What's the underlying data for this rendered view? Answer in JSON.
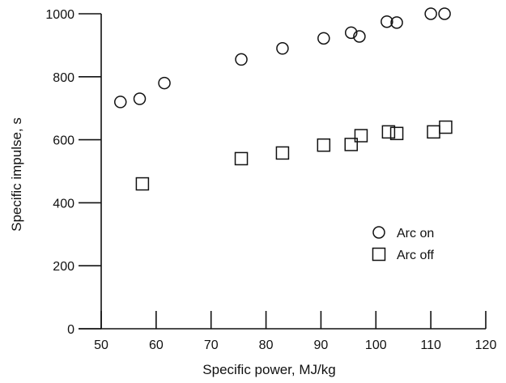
{
  "chart_data": {
    "type": "scatter",
    "xlabel": "Specific power, MJ/kg",
    "ylabel": "Specific impulse, s",
    "xlim": [
      50,
      120
    ],
    "ylim": [
      0,
      1000
    ],
    "xticks": [
      50,
      60,
      70,
      80,
      90,
      100,
      110,
      120
    ],
    "yticks": [
      0,
      200,
      400,
      600,
      800,
      1000
    ],
    "grid": false,
    "legend": "right",
    "series": [
      {
        "name": "Arc on",
        "marker": "circle",
        "points": [
          [
            53.5,
            720
          ],
          [
            57,
            730
          ],
          [
            61.5,
            780
          ],
          [
            75.5,
            855
          ],
          [
            83,
            890
          ],
          [
            90.5,
            922
          ],
          [
            95.5,
            940
          ],
          [
            97,
            928
          ],
          [
            102,
            975
          ],
          [
            103.8,
            972
          ],
          [
            110,
            1000
          ],
          [
            112.5,
            1000
          ]
        ]
      },
      {
        "name": "Arc off",
        "marker": "square",
        "points": [
          [
            57.5,
            460
          ],
          [
            75.5,
            540
          ],
          [
            83,
            558
          ],
          [
            90.5,
            583
          ],
          [
            95.5,
            585
          ],
          [
            97.3,
            613
          ],
          [
            102.3,
            625
          ],
          [
            103.8,
            620
          ],
          [
            110.5,
            625
          ],
          [
            112.7,
            640
          ]
        ]
      }
    ]
  }
}
